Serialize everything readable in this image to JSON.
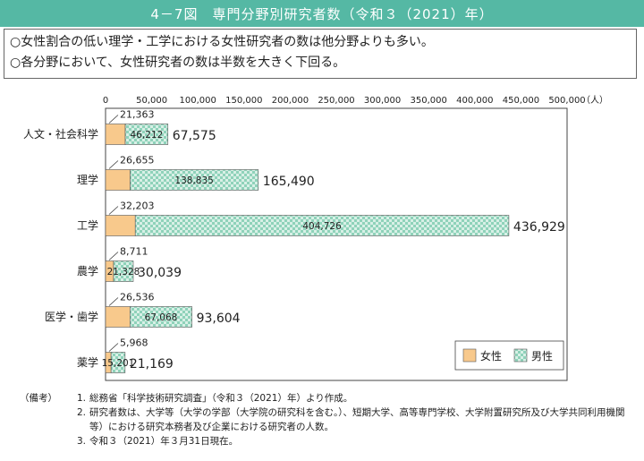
{
  "header": {
    "title": "4－7図　専門分野別研究者数（令和３（2021）年）"
  },
  "summary": {
    "lines": [
      "○女性割合の低い理学・工学における女性研究者の数は他分野よりも多い。",
      "○各分野において、女性研究者の数は半数を大きく下回る。"
    ]
  },
  "colors": {
    "female": "#f8c98c",
    "male_light": "#d8f0e6",
    "male_dark": "#8fd2ba",
    "title_bg": "#55b8a4"
  },
  "chart_data": {
    "type": "bar",
    "orientation": "horizontal",
    "stacked": true,
    "categories": [
      "人文・社会科学",
      "理学",
      "工学",
      "農学",
      "医学・歯学",
      "薬学"
    ],
    "series": [
      {
        "name": "女性",
        "values": [
          21363,
          26655,
          32203,
          8711,
          26536,
          5968
        ]
      },
      {
        "name": "男性",
        "values": [
          46212,
          138835,
          404726,
          21328,
          67068,
          15201
        ]
      }
    ],
    "totals": [
      67575,
      165490,
      436929,
      30039,
      93604,
      21169
    ],
    "value_labels": {
      "female": [
        "21,363",
        "26,655",
        "32,203",
        "8,711",
        "26,536",
        "5,968"
      ],
      "male": [
        "46,212",
        "138,835",
        "404,726",
        "21,328",
        "67,068",
        "15,201"
      ],
      "totals": [
        "67,575",
        "165,490",
        "436,929",
        "30,039",
        "93,604",
        "21,169"
      ]
    },
    "xlim": [
      0,
      500000
    ],
    "x_ticks": [
      0,
      50000,
      100000,
      150000,
      200000,
      250000,
      300000,
      350000,
      400000,
      450000,
      500000
    ],
    "x_tick_labels": [
      "0",
      "50,000",
      "100,000",
      "150,000",
      "200,000",
      "250,000",
      "300,000",
      "350,000",
      "400,000",
      "450,000",
      "500,000"
    ],
    "unit_label": "（人）",
    "legend": {
      "position": "bottom-right",
      "entries": [
        "女性",
        "男性"
      ]
    },
    "grid": false
  },
  "notes": {
    "label": "（備考）",
    "items": [
      {
        "num": "1.",
        "text": "総務省「科学技術研究調査」（令和３（2021）年）より作成。"
      },
      {
        "num": "2.",
        "text": "研究者数は、大学等（大学の学部（大学院の研究科を含む。）、短期大学、高等専門学校、大学附置研究所及び大学共同利用機関等）における研究本務者及び企業における研究者の人数。"
      },
      {
        "num": "3.",
        "text": "令和３（2021）年３月31日現在。"
      }
    ]
  }
}
